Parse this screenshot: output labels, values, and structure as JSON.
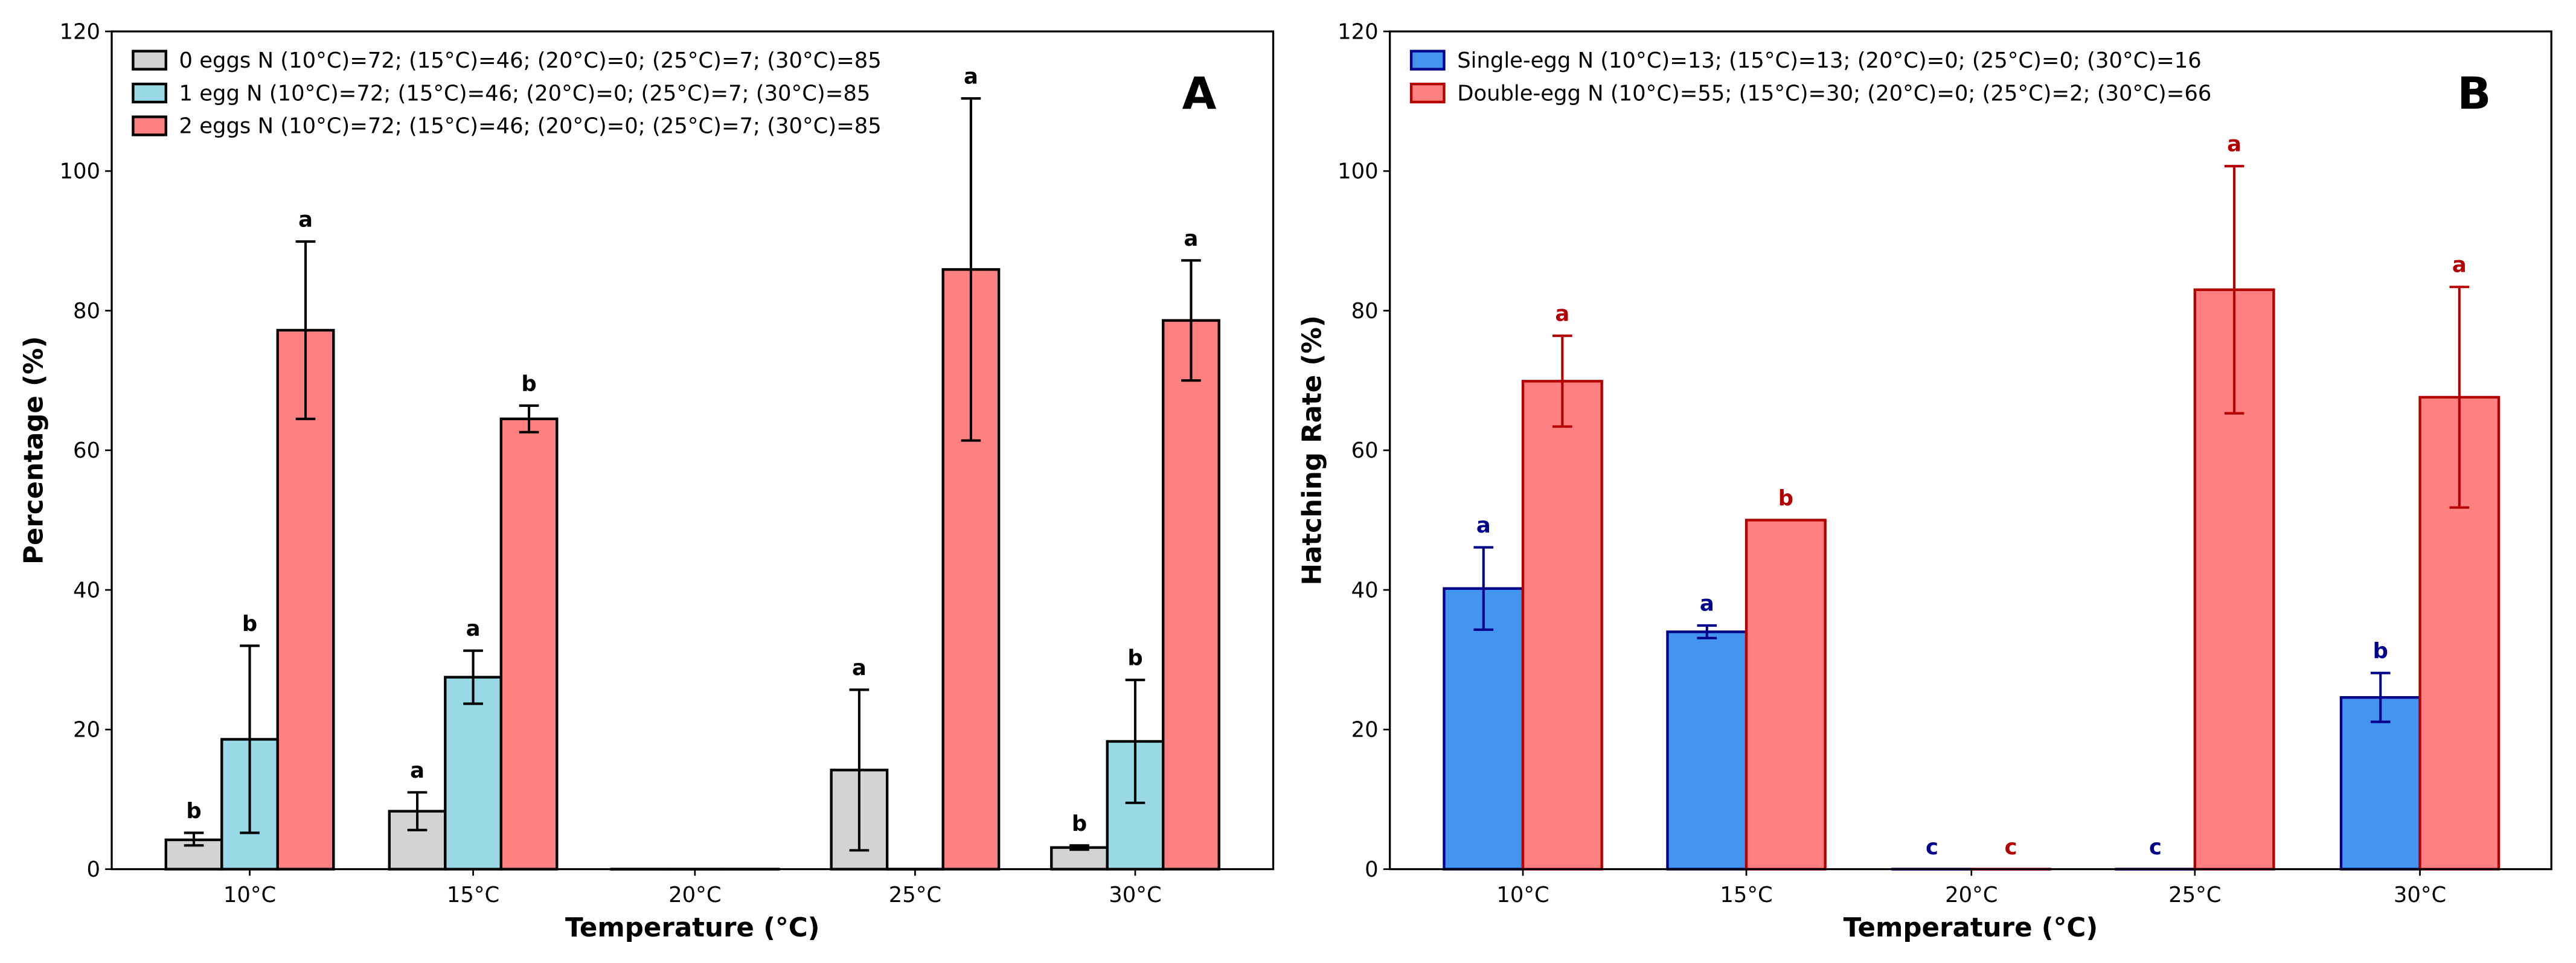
{
  "chart_data": [
    {
      "type": "bar",
      "panel_label": "A",
      "xlabel": "Temperature (°C)",
      "ylabel": "Percentage (%)",
      "ylim": [
        0,
        120
      ],
      "yticks": [
        0,
        20,
        40,
        60,
        80,
        100,
        120
      ],
      "grid": false,
      "legend_placement": "top-left",
      "categories": [
        "10°C",
        "15°C",
        "20°C",
        "25°C",
        "30°C"
      ],
      "series": [
        {
          "name": "0 eggs N (10°C)=72; (15°C)=46; (20°C)=0; (25°C)=7; (30°C)=85",
          "fill": "#d3d3d3",
          "edge": "#000000",
          "letter_color": "#000000",
          "values": [
            4.2,
            8.3,
            0,
            14.2,
            3.1
          ],
          "err_low": [
            3.4,
            5.6,
            null,
            2.7,
            2.8
          ],
          "err_high": [
            5.2,
            11.0,
            null,
            25.7,
            3.4
          ],
          "letters": [
            "b",
            "a",
            "",
            "a",
            "b"
          ]
        },
        {
          "name": "1 egg N (10°C)=72; (15°C)=46; (20°C)=0; (25°C)=7; (30°C)=85",
          "fill": "#99d9e6",
          "edge": "#000000",
          "letter_color": "#000000",
          "values": [
            18.6,
            27.5,
            0,
            0,
            18.3
          ],
          "err_low": [
            5.2,
            23.7,
            null,
            null,
            9.5
          ],
          "err_high": [
            32.0,
            31.3,
            null,
            null,
            27.1
          ],
          "letters": [
            "b",
            "a",
            "",
            "",
            "b"
          ]
        },
        {
          "name": "2 eggs N (10°C)=72; (15°C)=46; (20°C)=0; (25°C)=7; (30°C)=85",
          "fill": "#ff8080",
          "edge": "#000000",
          "letter_color": "#000000",
          "values": [
            77.2,
            64.5,
            0,
            85.9,
            78.6
          ],
          "err_low": [
            64.5,
            62.6,
            null,
            61.4,
            70.0
          ],
          "err_high": [
            89.9,
            66.4,
            null,
            110.4,
            87.2
          ],
          "letters": [
            "a",
            "b",
            "",
            "a",
            "a"
          ]
        }
      ]
    },
    {
      "type": "bar",
      "panel_label": "B",
      "xlabel": "Temperature (°C)",
      "ylabel": "Hatching Rate (%)",
      "ylim": [
        0,
        120
      ],
      "yticks": [
        0,
        20,
        40,
        60,
        80,
        100,
        120
      ],
      "grid": false,
      "legend_placement": "top-left",
      "categories": [
        "10°C",
        "15°C",
        "20°C",
        "25°C",
        "30°C"
      ],
      "series": [
        {
          "name": "Single-egg N (10°C)=13; (15°C)=13; (20°C)=0; (25°C)=0; (30°C)=16",
          "fill": "#4394ee",
          "edge": "#00008b",
          "letter_color": "#00008b",
          "values": [
            40.2,
            34.0,
            0,
            0,
            24.6
          ],
          "err_low": [
            34.3,
            33.1,
            null,
            null,
            21.1
          ],
          "err_high": [
            46.1,
            34.9,
            null,
            null,
            28.1
          ],
          "letters": [
            "a",
            "a",
            "c",
            "c",
            "b"
          ]
        },
        {
          "name": "Double-egg N (10°C)=55; (15°C)=30; (20°C)=0; (25°C)=2; (30°C)=66",
          "fill": "#ff8080",
          "edge": "#b30000",
          "letter_color": "#b30000",
          "values": [
            69.9,
            50.0,
            0,
            83.0,
            67.6
          ],
          "err_low": [
            63.4,
            null,
            null,
            65.3,
            51.8
          ],
          "err_high": [
            76.4,
            null,
            null,
            100.7,
            83.4
          ],
          "letters": [
            "a",
            "b",
            "c",
            "a",
            "a"
          ]
        }
      ]
    }
  ]
}
